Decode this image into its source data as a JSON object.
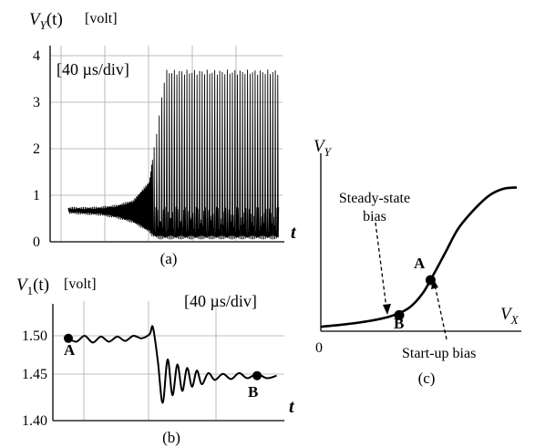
{
  "chart_data": [
    {
      "panel": "(a)",
      "type": "line",
      "ylabel_main": "V",
      "ylabel_sub": "Y",
      "ylabel_arg": "(t)",
      "ylabel_unit": "[volt]",
      "xlabel": "t",
      "timescale": "[40 µs/div]",
      "yticks": [
        "0",
        "1",
        "2",
        "3",
        "4"
      ],
      "ylim": [
        0,
        4
      ],
      "grid": true,
      "x": [
        0,
        0.5,
        1,
        1.5,
        2,
        2.5,
        2.6,
        2.8,
        3,
        3.2,
        3.4,
        4,
        5,
        6,
        6.5
      ],
      "envelope_upper": [
        0.75,
        0.75,
        0.76,
        0.8,
        0.9,
        1.3,
        1.8,
        2.7,
        3.7,
        3.7,
        3.7,
        3.7,
        3.7,
        3.7,
        3.7
      ],
      "envelope_lower": [
        0.6,
        0.58,
        0.56,
        0.5,
        0.4,
        0.2,
        0.1,
        0.05,
        0.05,
        0.05,
        0.05,
        0.05,
        0.05,
        0.05,
        0.05
      ]
    },
    {
      "panel": "(b)",
      "type": "line",
      "ylabel_main": "V",
      "ylabel_sub": "1",
      "ylabel_arg": "(t)",
      "ylabel_unit": "[volt]",
      "xlabel": "t",
      "timescale": "[40 µs/div]",
      "yticks": [
        "1.40",
        "1.45",
        "1.50"
      ],
      "ylim": [
        1.4,
        1.5
      ],
      "grid": true,
      "x": [
        0,
        0.25,
        0.5,
        0.75,
        1,
        1.25,
        1.5,
        1.75,
        2,
        2.25,
        2.5,
        2.6,
        2.75,
        2.9,
        3.05,
        3.2,
        3.35,
        3.5,
        3.65,
        3.8,
        3.95,
        4.1,
        4.3,
        4.5,
        4.75,
        5,
        5.25,
        5.5,
        5.8,
        6.1,
        6.4
      ],
      "y": [
        1.497,
        1.493,
        1.5,
        1.492,
        1.499,
        1.493,
        1.499,
        1.494,
        1.5,
        1.497,
        1.502,
        1.51,
        1.47,
        1.421,
        1.472,
        1.43,
        1.466,
        1.435,
        1.462,
        1.44,
        1.459,
        1.443,
        1.456,
        1.448,
        1.455,
        1.449,
        1.456,
        1.45,
        1.455,
        1.45,
        1.453
      ],
      "points": [
        {
          "label": "A",
          "x": 0,
          "y": 1.497
        },
        {
          "label": "B",
          "x": 5.8,
          "y": 1.453
        }
      ]
    },
    {
      "panel": "(c)",
      "type": "line",
      "ylabel_main": "V",
      "ylabel_sub": "Y",
      "xlabel_main": "V",
      "xlabel_sub": "X",
      "origin_label": "0",
      "x": [
        0,
        0.2,
        0.35,
        0.45,
        0.52,
        0.58,
        0.64,
        0.7,
        0.78,
        0.86,
        0.93,
        1.0
      ],
      "y": [
        0.03,
        0.06,
        0.1,
        0.16,
        0.26,
        0.4,
        0.55,
        0.7,
        0.83,
        0.93,
        0.975,
        0.985
      ],
      "points": [
        {
          "label": "A",
          "x": 0.56,
          "y": 0.35
        },
        {
          "label": "B",
          "x": 0.4,
          "y": 0.11
        }
      ],
      "annotations": [
        {
          "text_lines": [
            "Steady-state",
            "bias"
          ],
          "target": "B"
        },
        {
          "text_lines": [
            "Start-up bias"
          ],
          "target": "A"
        }
      ]
    }
  ]
}
